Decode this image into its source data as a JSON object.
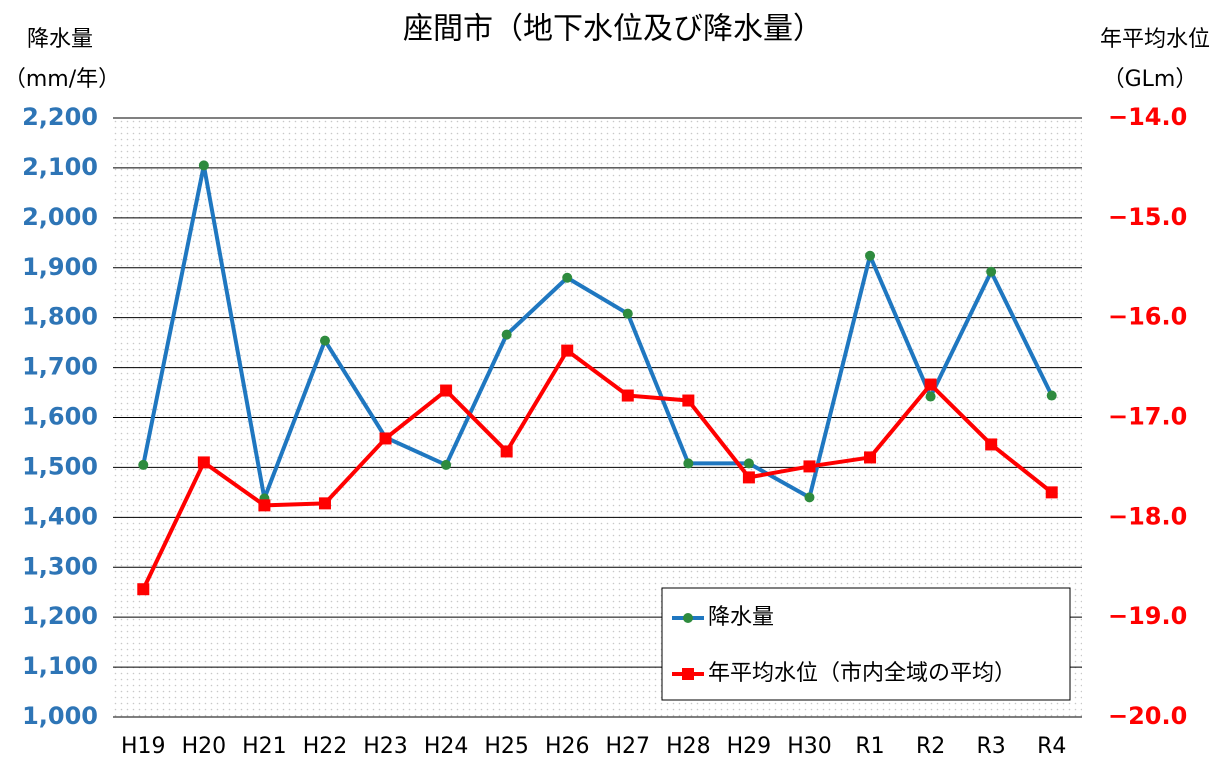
{
  "chart_data": {
    "type": "line",
    "title": "座間市（地下水位及び降水量）",
    "y_label": [
      "降水量",
      "（mm/年）"
    ],
    "y2_label": [
      "年平均水位",
      "（GLm）"
    ],
    "categories": [
      "H19",
      "H20",
      "H21",
      "H22",
      "H23",
      "H24",
      "H25",
      "H26",
      "H27",
      "H28",
      "H29",
      "H30",
      "R1",
      "R2",
      "R3",
      "R4"
    ],
    "series": [
      {
        "name": "降水量",
        "color": "#1f77c0",
        "marker": "circle",
        "marker_color": "#2e8b3e",
        "values": [
          1505,
          2105,
          1438,
          1754,
          1560,
          1505,
          1766,
          1880,
          1808,
          1508,
          1508,
          1440,
          1924,
          1642,
          1892,
          1644
        ]
      },
      {
        "name": "年平均水位（市内全域の平均）",
        "color": "#ff0000",
        "marker": "square",
        "marker_color": "#ff0000",
        "axis": "y2",
        "values": [
          -18.72,
          -17.45,
          -17.88,
          -17.86,
          -17.21,
          -16.73,
          -17.34,
          -16.33,
          -16.78,
          -16.83,
          -17.6,
          -17.49,
          -17.4,
          -16.67,
          -17.27,
          -17.75
        ]
      }
    ],
    "ylim": [
      1000,
      2200
    ],
    "yticks": [
      {
        "value": 1000,
        "label": "1,000"
      },
      {
        "value": 1100,
        "label": "1,100"
      },
      {
        "value": 1200,
        "label": "1,200"
      },
      {
        "value": 1300,
        "label": "1,300"
      },
      {
        "value": 1400,
        "label": "1,400"
      },
      {
        "value": 1500,
        "label": "1,500"
      },
      {
        "value": 1600,
        "label": "1,600"
      },
      {
        "value": 1700,
        "label": "1,700"
      },
      {
        "value": 1800,
        "label": "1,800"
      },
      {
        "value": 1900,
        "label": "1,900"
      },
      {
        "value": 2000,
        "label": "2,000"
      },
      {
        "value": 2100,
        "label": "2,100"
      },
      {
        "value": 2200,
        "label": "2,200"
      }
    ],
    "y2lim": [
      -20,
      -14
    ],
    "y2ticks": [
      {
        "value": -20,
        "label": "−20.0"
      },
      {
        "value": -19,
        "label": "−19.0"
      },
      {
        "value": -18,
        "label": "−18.0"
      },
      {
        "value": -17,
        "label": "−17.0"
      },
      {
        "value": -16,
        "label": "−16.0"
      },
      {
        "value": -15,
        "label": "−15.0"
      },
      {
        "value": -14,
        "label": "−14.0"
      }
    ],
    "ytick_color": "#2e75b6",
    "y2tick_color": "#ff0000",
    "grid": true,
    "legend": "lower right"
  }
}
